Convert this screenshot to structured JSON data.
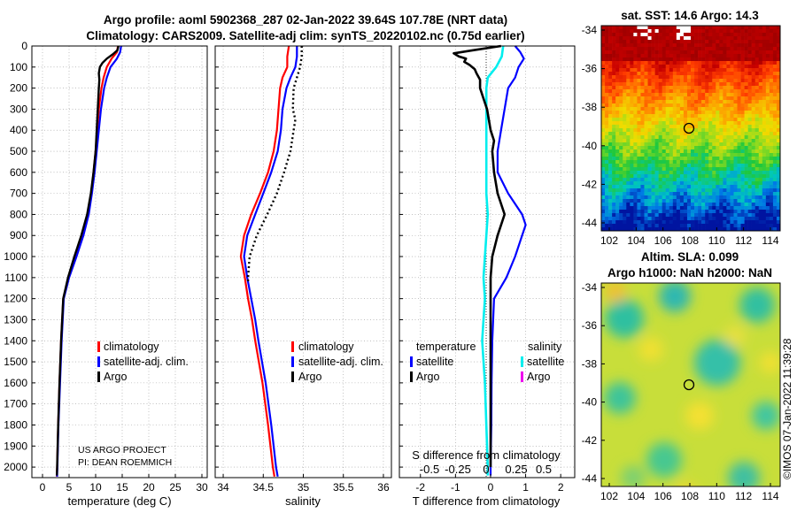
{
  "header": {
    "line1": "Argo profile: aoml 5902368_287 02-Jan-2022 39.64S 107.78E (NRT data)",
    "line2": "Climatology: CARS2009. Satellite-adj clim: synTS_20220102.nc (0.75d earlier)"
  },
  "depth_axis": {
    "ylim": [
      0,
      2050
    ],
    "ticks": [
      0,
      100,
      200,
      300,
      400,
      500,
      600,
      700,
      800,
      900,
      1000,
      1100,
      1200,
      1300,
      1400,
      1500,
      1600,
      1700,
      1800,
      1900,
      2000
    ]
  },
  "colors": {
    "climatology": "#ff0000",
    "satellite": "#0000ff",
    "argo": "#000000",
    "sat_salinity": "#00eeee",
    "argo_salinity": "#ee00ee"
  },
  "panels": {
    "temperature": {
      "xlabel": "temperature (deg C)",
      "xlim": [
        -2,
        31
      ],
      "xticks": [
        0,
        5,
        10,
        15,
        20,
        25,
        30
      ],
      "legend": {
        "climatology": "climatology",
        "satellite": "satellite-adj. clim.",
        "argo": "Argo"
      },
      "credit": [
        "US ARGO PROJECT",
        "PI: DEAN ROEMMICH"
      ]
    },
    "salinity": {
      "xlabel": "salinity",
      "xlim": [
        33.9,
        36.1
      ],
      "xticks": [
        34,
        34.5,
        35,
        35.5,
        36
      ],
      "xticklabels": [
        "34",
        "34.5",
        "35",
        "35.5",
        "36"
      ],
      "legend": {
        "climatology": "climatology",
        "satellite": "satellite-adj. clim.",
        "argo": "Argo"
      }
    },
    "difference": {
      "xlabel": "T difference from climatology",
      "xlim": [
        -2.6,
        2.4
      ],
      "xticks": [
        -2,
        -1,
        0,
        1,
        2
      ],
      "s_label": "S difference from climatology",
      "s_ticks": [
        "-0.5",
        "-0.25",
        "0",
        "0.25",
        "0.5"
      ],
      "legend": {
        "temp_title": "temperature",
        "sal_title": "salinity",
        "satellite": "satellite",
        "argo": "Argo"
      }
    },
    "sst_map": {
      "title": "sat. SST: 14.6 Argo: 14.3",
      "yticks": [
        "-34",
        "-36",
        "-38",
        "-40",
        "-42",
        "-44"
      ],
      "xticks": [
        "102",
        "104",
        "106",
        "108",
        "110",
        "112",
        "114"
      ]
    },
    "sla_map": {
      "title1": "Altim. SLA: 0.099",
      "title2": "Argo h1000: NaN h2000: NaN",
      "yticks": [
        "-34",
        "-36",
        "-38",
        "-40",
        "-42",
        "-44"
      ],
      "xticks": [
        "102",
        "104",
        "106",
        "108",
        "110",
        "112",
        "114"
      ]
    }
  },
  "watermark": "©IMOS 07-Jan-2022 11:39:28",
  "chart_data": [
    {
      "type": "line",
      "title": "temperature",
      "xlabel": "temperature (deg C)",
      "ylabel": "depth (m)",
      "xlim": [
        -2,
        31
      ],
      "ylim": [
        2050,
        0
      ],
      "series": [
        {
          "name": "climatology",
          "depth": [
            0,
            30,
            60,
            100,
            150,
            200,
            300,
            400,
            500,
            600,
            700,
            800,
            900,
            1000,
            1100,
            1200,
            1400,
            1600,
            1800,
            2000,
            2045
          ],
          "values": [
            14.2,
            14.0,
            13.0,
            12.1,
            11.5,
            11.1,
            10.6,
            10.3,
            10.0,
            9.6,
            9.2,
            8.6,
            7.6,
            6.3,
            4.9,
            3.9,
            3.5,
            3.2,
            2.95,
            2.75,
            2.7
          ]
        },
        {
          "name": "satellite-adj. clim.",
          "depth": [
            0,
            30,
            60,
            100,
            150,
            200,
            300,
            400,
            500,
            600,
            700,
            800,
            900,
            1000,
            1100,
            1200,
            1400,
            1600,
            1800,
            2000,
            2045
          ],
          "values": [
            14.8,
            14.6,
            14.0,
            12.8,
            12.1,
            11.6,
            11.0,
            10.6,
            10.2,
            9.8,
            9.3,
            8.7,
            7.7,
            6.4,
            5.0,
            4.0,
            3.6,
            3.3,
            3.0,
            2.8,
            2.75
          ]
        },
        {
          "name": "Argo",
          "depth": [
            0,
            20,
            40,
            60,
            80,
            100,
            130,
            160,
            200,
            250,
            300,
            400,
            500,
            600,
            700,
            800,
            900,
            1000,
            1100,
            1200,
            1400,
            1600,
            1800,
            2000,
            2040
          ],
          "values": [
            14.3,
            14.1,
            13.2,
            12.1,
            11.3,
            10.8,
            10.6,
            10.7,
            10.6,
            10.5,
            10.4,
            10.2,
            10.0,
            9.6,
            9.1,
            8.4,
            7.3,
            6.0,
            4.8,
            3.9,
            3.5,
            3.2,
            2.95,
            2.75,
            2.7
          ]
        }
      ]
    },
    {
      "type": "line",
      "title": "salinity",
      "xlabel": "salinity",
      "ylabel": "depth (m)",
      "xlim": [
        33.9,
        36.1
      ],
      "ylim": [
        2050,
        0
      ],
      "series": [
        {
          "name": "climatology",
          "depth": [
            0,
            50,
            100,
            150,
            200,
            300,
            400,
            500,
            600,
            700,
            800,
            900,
            1000,
            1100,
            1200,
            1300,
            1400,
            1600,
            1800,
            2000,
            2045
          ],
          "values": [
            34.82,
            34.8,
            34.8,
            34.74,
            34.71,
            34.69,
            34.67,
            34.63,
            34.56,
            34.46,
            34.35,
            34.26,
            34.22,
            34.27,
            34.31,
            34.36,
            34.4,
            34.49,
            34.56,
            34.62,
            34.64
          ]
        },
        {
          "name": "satellite-adj. clim.",
          "depth": [
            0,
            50,
            100,
            150,
            200,
            300,
            400,
            500,
            600,
            700,
            800,
            900,
            1000,
            1100,
            1200,
            1300,
            1400,
            1600,
            1800,
            2000,
            2045
          ],
          "values": [
            34.92,
            34.92,
            34.9,
            34.84,
            34.79,
            34.74,
            34.72,
            34.68,
            34.6,
            34.5,
            34.4,
            34.3,
            34.26,
            34.3,
            34.35,
            34.4,
            34.44,
            34.53,
            34.6,
            34.66,
            34.68
          ]
        },
        {
          "name": "Argo",
          "depth": [
            0,
            50,
            100,
            150,
            200,
            300,
            350,
            400,
            500,
            600,
            700,
            800,
            900,
            1000,
            1100,
            1120
          ],
          "values": [
            34.98,
            34.98,
            34.96,
            34.92,
            34.88,
            34.87,
            34.9,
            34.88,
            34.84,
            34.76,
            34.67,
            34.55,
            34.42,
            34.33,
            34.31,
            34.31
          ]
        }
      ]
    },
    {
      "type": "line",
      "title": "difference from climatology",
      "xlabel": "T difference from climatology",
      "ylabel": "depth (m)",
      "xlim": [
        -2.6,
        2.4
      ],
      "ylim": [
        2050,
        0
      ],
      "series": [
        {
          "name": "temperature satellite",
          "depth": [
            0,
            30,
            60,
            100,
            150,
            200,
            300,
            400,
            500,
            600,
            700,
            800,
            850,
            900,
            1000,
            1100,
            1200,
            1400,
            1600,
            1800,
            2000,
            2040
          ],
          "values": [
            0.7,
            0.85,
            0.95,
            0.8,
            0.7,
            0.5,
            0.4,
            0.3,
            0.2,
            0.2,
            0.5,
            0.9,
            1.0,
            0.9,
            0.7,
            0.45,
            0.1,
            0.05,
            0.03,
            0.02,
            0.0,
            0.0
          ]
        },
        {
          "name": "temperature Argo",
          "depth": [
            0,
            20,
            35,
            50,
            60,
            75,
            90,
            110,
            130,
            160,
            200,
            250,
            300,
            400,
            450,
            500,
            600,
            700,
            800,
            900,
            1000,
            1100,
            1200,
            1400,
            1600,
            1800,
            2000
          ],
          "values": [
            0.3,
            -0.5,
            -1.05,
            -0.9,
            -0.7,
            -0.75,
            -0.6,
            -0.45,
            -0.4,
            -0.3,
            -0.3,
            -0.2,
            -0.1,
            0.0,
            0.1,
            0.05,
            0.1,
            0.2,
            0.4,
            0.2,
            0.05,
            0.0,
            0.0,
            0.0,
            0.0,
            0.0,
            0.0
          ]
        },
        {
          "name": "salinity satellite",
          "depth": [
            0,
            50,
            100,
            150,
            200,
            300,
            400,
            500,
            600,
            700,
            800,
            900,
            1000,
            1100,
            1200,
            1300,
            1400,
            1600,
            1800,
            2000,
            2040
          ],
          "values": [
            0.09,
            0.08,
            0.04,
            -0.02,
            -0.03,
            -0.03,
            -0.03,
            -0.03,
            -0.03,
            -0.03,
            -0.02,
            -0.03,
            -0.04,
            -0.05,
            -0.04,
            -0.05,
            -0.06,
            -0.04,
            -0.03,
            -0.02,
            -0.02
          ]
        },
        {
          "name": "salinity Argo",
          "depth": [],
          "values": []
        }
      ]
    }
  ]
}
